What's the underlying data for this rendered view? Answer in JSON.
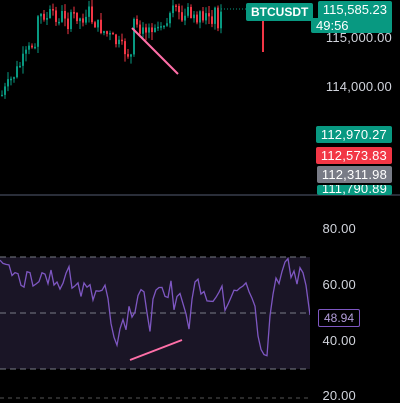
{
  "symbol": {
    "name": "BTCUSDT",
    "color": "#089981"
  },
  "current_price": {
    "value": "115,585.23",
    "timer": "49:56",
    "color": "#089981"
  },
  "price_axis": {
    "labels": [
      "115,000.00",
      "114,000.00"
    ]
  },
  "price_tags": [
    {
      "value": "112,970.27",
      "color": "#089981"
    },
    {
      "value": "112,573.83",
      "color": "#f23645"
    },
    {
      "value": "112,311.98",
      "color": "#787b86"
    },
    {
      "value": "111,790.89",
      "color": "#089981"
    }
  ],
  "rsi_axis": {
    "labels": [
      "80.00",
      "60.00",
      "40.00",
      "20.00"
    ]
  },
  "rsi": {
    "value": "48.94",
    "line_color": "#7e57c2",
    "band_upper": 70,
    "band_lower": 30,
    "mid": 50
  },
  "colors": {
    "up": "#089981",
    "down": "#f23645",
    "trendline": "#ff6fa8"
  }
}
